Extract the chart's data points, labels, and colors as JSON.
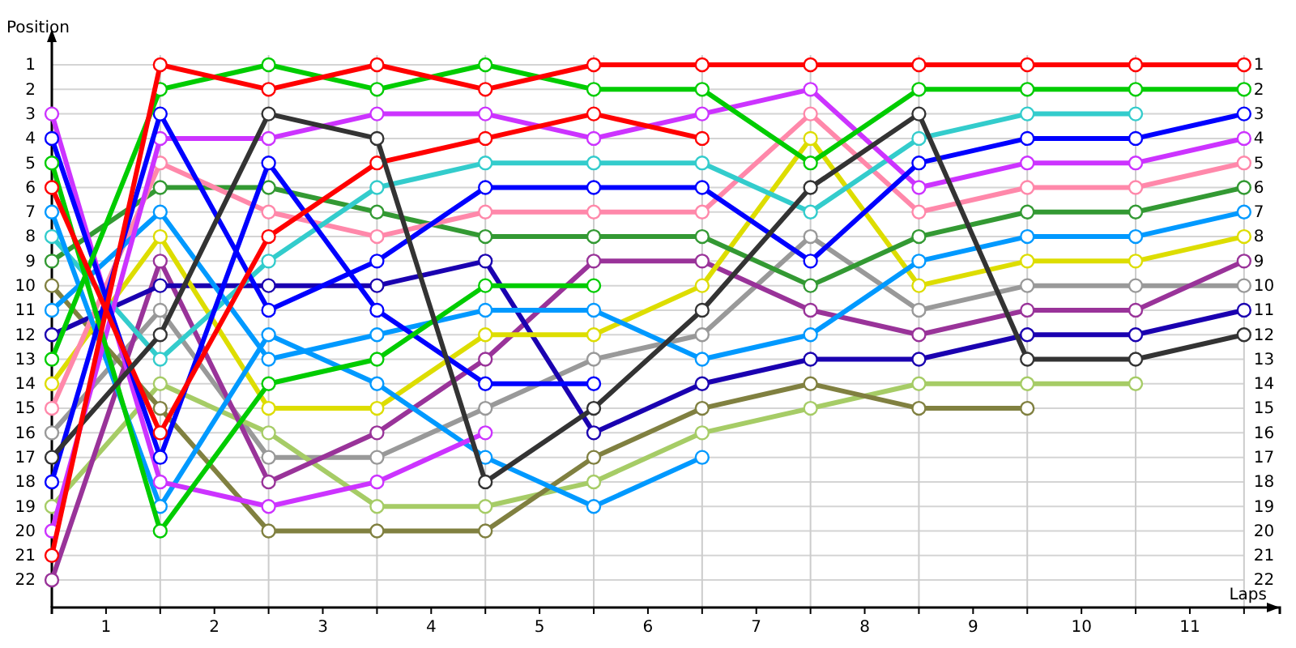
{
  "chart_data": {
    "type": "line",
    "xlabel": "Laps",
    "ylabel": "Position",
    "marker": "circle",
    "grid": true,
    "x": [
      0,
      1,
      2,
      3,
      4,
      5,
      6,
      7,
      8,
      9,
      10,
      11
    ],
    "xlim": [
      0,
      11.33
    ],
    "xticks": [
      {
        "value": 0.5,
        "label": "1"
      },
      {
        "value": 1.5,
        "label": "2"
      },
      {
        "value": 2.5,
        "label": "3"
      },
      {
        "value": 3.5,
        "label": "4"
      },
      {
        "value": 4.5,
        "label": "5"
      },
      {
        "value": 5.5,
        "label": "6"
      },
      {
        "value": 6.5,
        "label": "7"
      },
      {
        "value": 7.5,
        "label": "8"
      },
      {
        "value": 8.5,
        "label": "9"
      },
      {
        "value": 9.5,
        "label": "10"
      },
      {
        "value": 10.5,
        "label": "11"
      },
      {
        "value": 1,
        "label": null
      },
      {
        "value": 2,
        "label": null
      },
      {
        "value": 3,
        "label": null
      },
      {
        "value": 4,
        "label": null
      },
      {
        "value": 5,
        "label": null
      },
      {
        "value": 6,
        "label": null
      },
      {
        "value": 7,
        "label": null
      },
      {
        "value": 8,
        "label": null
      },
      {
        "value": 9,
        "label": null
      },
      {
        "value": 10,
        "label": null
      },
      {
        "value": 11,
        "label": null
      }
    ],
    "ylim": [
      23.12,
      -0.19
    ],
    "yticks": [
      1,
      2,
      3,
      4,
      5,
      6,
      7,
      8,
      9,
      10,
      11,
      12,
      13,
      14,
      15,
      16,
      17,
      18,
      19,
      20,
      21,
      22
    ],
    "y2lim": [
      23.12,
      -0.19
    ],
    "y2ticks": [
      1,
      2,
      3,
      4,
      5,
      6,
      7,
      8,
      9,
      10,
      11,
      12,
      13,
      14,
      15,
      16,
      17,
      18,
      19,
      20,
      21,
      22
    ],
    "series": [
      {
        "color": "#999999",
        "values": [
          16,
          11,
          17,
          17,
          15,
          13,
          12,
          8,
          11,
          10,
          10,
          10
        ]
      },
      {
        "color": "#a6cc66",
        "values": [
          19,
          14,
          16,
          19,
          19,
          18,
          16,
          15,
          14,
          14,
          14,
          null
        ]
      },
      {
        "color": "#808040",
        "values": [
          10,
          15,
          20,
          20,
          20,
          17,
          15,
          14,
          15,
          15,
          null,
          null
        ]
      },
      {
        "color": "#993399",
        "values": [
          22,
          9,
          18,
          16,
          13,
          9,
          9,
          11,
          12,
          11,
          11,
          9
        ]
      },
      {
        "color": "#1a00b0",
        "values": [
          12,
          10,
          10,
          10,
          9,
          16,
          14,
          13,
          13,
          12,
          12,
          11
        ]
      },
      {
        "color": "#dddd00",
        "values": [
          14,
          8,
          15,
          15,
          12,
          12,
          10,
          4,
          10,
          9,
          9,
          8
        ]
      },
      {
        "color": "#339933",
        "values": [
          9,
          6,
          6,
          7,
          8,
          8,
          8,
          10,
          8,
          7,
          7,
          6
        ]
      },
      {
        "color": "#ff88aa",
        "values": [
          15,
          5,
          7,
          8,
          7,
          7,
          7,
          3,
          7,
          6,
          6,
          5
        ]
      },
      {
        "color": "#33cccc",
        "values": [
          8,
          13,
          9,
          6,
          5,
          5,
          5,
          7,
          4,
          3,
          3,
          null
        ]
      },
      {
        "color": "#0099ff",
        "values": [
          7,
          19,
          12,
          14,
          17,
          19,
          17,
          null,
          null,
          null,
          null,
          null
        ]
      },
      {
        "color": "#0099ff",
        "values": [
          11,
          7,
          13,
          12,
          11,
          11,
          13,
          12,
          9,
          8,
          8,
          7
        ]
      },
      {
        "color": "#cc33ff",
        "values": [
          3,
          18,
          19,
          18,
          16,
          null,
          null,
          null,
          null,
          null,
          null,
          null
        ]
      },
      {
        "color": "#cc33ff",
        "values": [
          20,
          4,
          4,
          3,
          3,
          4,
          3,
          2,
          6,
          5,
          5,
          4
        ]
      },
      {
        "color": "#0000ff",
        "values": [
          4,
          17,
          5,
          11,
          14,
          14,
          null,
          null,
          null,
          null,
          null,
          null
        ]
      },
      {
        "color": "#0000ff",
        "values": [
          18,
          3,
          11,
          9,
          6,
          6,
          6,
          9,
          5,
          4,
          4,
          3
        ]
      },
      {
        "color": "#00cc00",
        "values": [
          5,
          20,
          14,
          13,
          10,
          10,
          null,
          null,
          null,
          null,
          null,
          null
        ]
      },
      {
        "color": "#00cc00",
        "values": [
          13,
          2,
          1,
          2,
          1,
          2,
          2,
          5,
          2,
          2,
          2,
          2
        ]
      },
      {
        "color": "#ff0000",
        "values": [
          6,
          16,
          8,
          5,
          4,
          3,
          4,
          null,
          null,
          null,
          null,
          null
        ]
      },
      {
        "color": "#333333",
        "values": [
          17,
          12,
          3,
          4,
          18,
          15,
          11,
          6,
          3,
          13,
          13,
          12
        ]
      },
      {
        "color": "#ff0000",
        "values": [
          21,
          1,
          2,
          1,
          2,
          1,
          1,
          1,
          1,
          1,
          1,
          1
        ]
      }
    ]
  }
}
